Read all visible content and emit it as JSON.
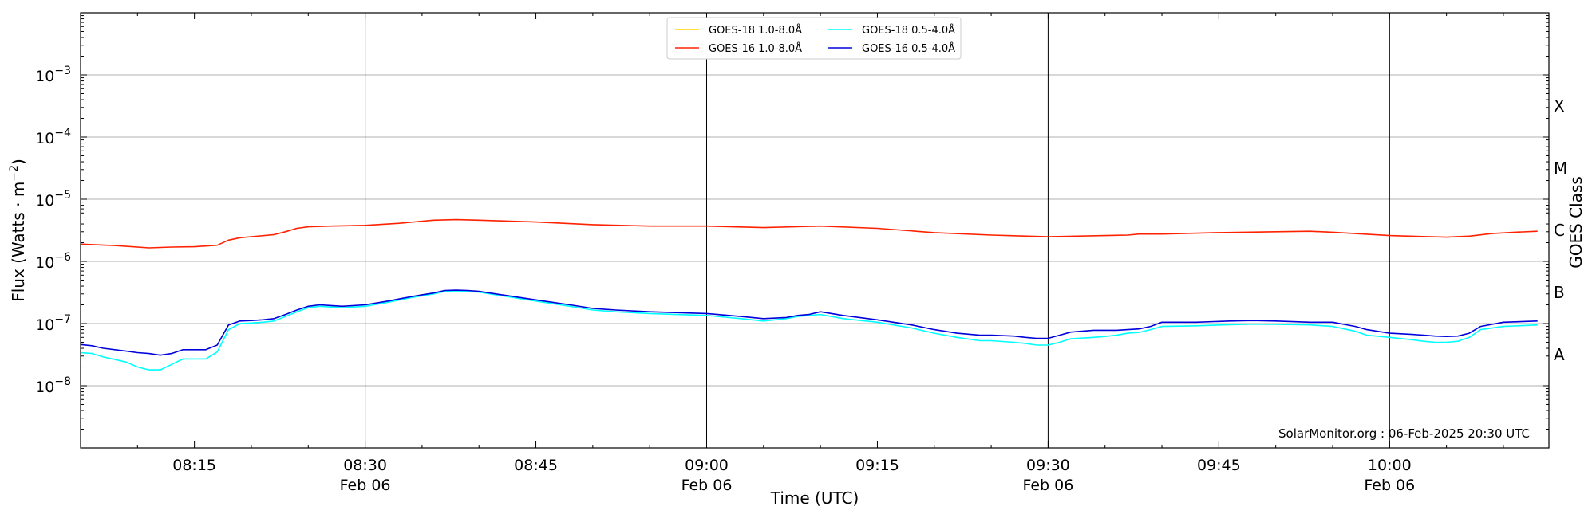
{
  "chart_data": {
    "type": "line",
    "xlabel": "Time (UTC)",
    "ylabel": "Flux (Watts · m$^{-2}$)",
    "ylabel_parts": {
      "main": "Flux (Watts · m",
      "sup": "−2",
      "close": ")"
    },
    "right_label": "GOES Class",
    "x_range": [
      "08:05",
      "10:14"
    ],
    "x_ticks": [
      {
        "time": "08:15",
        "date": ""
      },
      {
        "time": "08:30",
        "date": "Feb 06"
      },
      {
        "time": "08:45",
        "date": ""
      },
      {
        "time": "09:00",
        "date": "Feb 06"
      },
      {
        "time": "09:15",
        "date": ""
      },
      {
        "time": "09:30",
        "date": "Feb 06"
      },
      {
        "time": "09:45",
        "date": ""
      },
      {
        "time": "10:00",
        "date": "Feb 06"
      }
    ],
    "vertical_lines": [
      "08:30",
      "09:00",
      "09:30",
      "10:00"
    ],
    "y_scale": "log",
    "y_range": [
      1e-09,
      0.01
    ],
    "y_ticks": [
      {
        "exp": -8,
        "label": "10",
        "sup": "−8"
      },
      {
        "exp": -7,
        "label": "10",
        "sup": "−7"
      },
      {
        "exp": -6,
        "label": "10",
        "sup": "−6"
      },
      {
        "exp": -5,
        "label": "10",
        "sup": "−5"
      },
      {
        "exp": -4,
        "label": "10",
        "sup": "−4"
      },
      {
        "exp": -3,
        "label": "10",
        "sup": "−3"
      }
    ],
    "grid": "horizontal at decades",
    "goes_classes": [
      {
        "label": "A",
        "exp": -8
      },
      {
        "label": "B",
        "exp": -7
      },
      {
        "label": "C",
        "exp": -6
      },
      {
        "label": "M",
        "exp": -5
      },
      {
        "label": "X",
        "exp": -4
      }
    ],
    "legend_position": "top-center",
    "watermark": "SolarMonitor.org : 06-Feb-2025 20:30 UTC",
    "series": [
      {
        "name": "GOES-18 1.0-8.0Å",
        "color": "#ffd700",
        "x": [],
        "y": []
      },
      {
        "name": "GOES-16 1.0-8.0Å",
        "color": "#ff2200",
        "x": [
          "08:05",
          "08:08",
          "08:11",
          "08:13",
          "08:15",
          "08:17",
          "08:18",
          "08:19",
          "08:20",
          "08:22",
          "08:23",
          "08:24",
          "08:25",
          "08:27",
          "08:30",
          "08:33",
          "08:36",
          "08:38",
          "08:40",
          "08:45",
          "08:50",
          "08:55",
          "09:00",
          "09:05",
          "09:10",
          "09:15",
          "09:20",
          "09:25",
          "09:30",
          "09:35",
          "09:37",
          "09:38",
          "09:40",
          "09:45",
          "09:50",
          "09:53",
          "09:55",
          "10:00",
          "10:05",
          "10:07",
          "10:09",
          "10:11",
          "10:13"
        ],
        "y": [
          1.9e-06,
          1.8e-06,
          1.65e-06,
          1.7e-06,
          1.72e-06,
          1.82e-06,
          2.2e-06,
          2.4e-06,
          2.5e-06,
          2.7e-06,
          3e-06,
          3.4e-06,
          3.6e-06,
          3.7e-06,
          3.8e-06,
          4.1e-06,
          4.6e-06,
          4.7e-06,
          4.6e-06,
          4.3e-06,
          3.9e-06,
          3.7e-06,
          3.7e-06,
          3.5e-06,
          3.7e-06,
          3.4e-06,
          2.9e-06,
          2.65e-06,
          2.5e-06,
          2.6e-06,
          2.65e-06,
          2.75e-06,
          2.75e-06,
          2.9e-06,
          3e-06,
          3.05e-06,
          2.95e-06,
          2.6e-06,
          2.45e-06,
          2.55e-06,
          2.8e-06,
          2.95e-06,
          3.05e-06
        ]
      },
      {
        "name": "GOES-18 0.5-4.0Å",
        "color": "#00ffff",
        "x": [
          "08:05",
          "08:06",
          "08:07",
          "08:09",
          "08:10",
          "08:11",
          "08:12",
          "08:13",
          "08:14",
          "08:15",
          "08:16",
          "08:17",
          "08:18",
          "08:19",
          "08:20",
          "08:21",
          "08:22",
          "08:23",
          "08:24",
          "08:25",
          "08:26",
          "08:27",
          "08:28",
          "08:30",
          "08:32",
          "08:34",
          "08:35",
          "08:36",
          "08:37",
          "08:38",
          "08:39",
          "08:40",
          "08:42",
          "08:45",
          "08:48",
          "08:50",
          "08:52",
          "08:55",
          "09:00",
          "09:03",
          "09:05",
          "09:07",
          "09:08",
          "09:09",
          "09:10",
          "09:12",
          "09:15",
          "09:18",
          "09:20",
          "09:22",
          "09:24",
          "09:25",
          "09:27",
          "09:28",
          "09:29",
          "09:30",
          "09:31",
          "09:32",
          "09:34",
          "09:35",
          "09:36",
          "09:37",
          "09:38",
          "09:39",
          "09:40",
          "09:43",
          "09:46",
          "09:48",
          "09:50",
          "09:53",
          "09:55",
          "09:57",
          "09:58",
          "10:00",
          "10:02",
          "10:03",
          "10:04",
          "10:05",
          "10:06",
          "10:07",
          "10:08",
          "10:10",
          "10:13"
        ],
        "y": [
          3.4e-08,
          3.3e-08,
          2.9e-08,
          2.4e-08,
          2e-08,
          1.8e-08,
          1.8e-08,
          2.2e-08,
          2.7e-08,
          2.7e-08,
          2.7e-08,
          3.5e-08,
          8e-08,
          1e-07,
          1.02e-07,
          1.05e-07,
          1.1e-07,
          1.3e-07,
          1.55e-07,
          1.8e-07,
          1.9e-07,
          1.85e-07,
          1.8e-07,
          1.9e-07,
          2.2e-07,
          2.6e-07,
          2.8e-07,
          3e-07,
          3.3e-07,
          3.35e-07,
          3.3e-07,
          3.2e-07,
          2.8e-07,
          2.3e-07,
          1.9e-07,
          1.65e-07,
          1.55e-07,
          1.45e-07,
          1.35e-07,
          1.2e-07,
          1.1e-07,
          1.2e-07,
          1.3e-07,
          1.35e-07,
          1.4e-07,
          1.2e-07,
          1.05e-07,
          8.5e-08,
          7e-08,
          6e-08,
          5.3e-08,
          5.3e-08,
          5e-08,
          4.8e-08,
          4.5e-08,
          4.5e-08,
          5e-08,
          5.7e-08,
          6e-08,
          6.2e-08,
          6.5e-08,
          7e-08,
          7.2e-08,
          8e-08,
          9e-08,
          9.2e-08,
          9.6e-08,
          9.8e-08,
          9.7e-08,
          9.5e-08,
          9e-08,
          7.5e-08,
          6.5e-08,
          6e-08,
          5.5e-08,
          5.2e-08,
          5e-08,
          5e-08,
          5.2e-08,
          6e-08,
          8e-08,
          9e-08,
          9.5e-08
        ]
      },
      {
        "name": "GOES-16 0.5-4.0Å",
        "color": "#0000dd",
        "x": [
          "08:05",
          "08:06",
          "08:07",
          "08:09",
          "08:10",
          "08:11",
          "08:12",
          "08:13",
          "08:14",
          "08:15",
          "08:16",
          "08:17",
          "08:18",
          "08:19",
          "08:20",
          "08:21",
          "08:22",
          "08:23",
          "08:24",
          "08:25",
          "08:26",
          "08:27",
          "08:28",
          "08:30",
          "08:32",
          "08:34",
          "08:35",
          "08:36",
          "08:37",
          "08:38",
          "08:39",
          "08:40",
          "08:42",
          "08:45",
          "08:48",
          "08:50",
          "08:52",
          "08:55",
          "09:00",
          "09:03",
          "09:05",
          "09:07",
          "09:08",
          "09:09",
          "09:10",
          "09:12",
          "09:15",
          "09:18",
          "09:20",
          "09:22",
          "09:24",
          "09:25",
          "09:27",
          "09:28",
          "09:29",
          "09:30",
          "09:31",
          "09:32",
          "09:34",
          "09:35",
          "09:36",
          "09:37",
          "09:38",
          "09:39",
          "09:40",
          "09:43",
          "09:46",
          "09:48",
          "09:50",
          "09:53",
          "09:55",
          "09:57",
          "09:58",
          "10:00",
          "10:02",
          "10:03",
          "10:04",
          "10:05",
          "10:06",
          "10:07",
          "10:08",
          "10:10",
          "10:13"
        ],
        "y": [
          4.6e-08,
          4.4e-08,
          4e-08,
          3.6e-08,
          3.4e-08,
          3.3e-08,
          3.1e-08,
          3.3e-08,
          3.8e-08,
          3.8e-08,
          3.8e-08,
          4.5e-08,
          9.5e-08,
          1.1e-07,
          1.12e-07,
          1.15e-07,
          1.2e-07,
          1.4e-07,
          1.65e-07,
          1.9e-07,
          2e-07,
          1.95e-07,
          1.9e-07,
          2e-07,
          2.3e-07,
          2.7e-07,
          2.9e-07,
          3.1e-07,
          3.4e-07,
          3.45e-07,
          3.4e-07,
          3.3e-07,
          2.9e-07,
          2.4e-07,
          2e-07,
          1.75e-07,
          1.65e-07,
          1.55e-07,
          1.45e-07,
          1.3e-07,
          1.2e-07,
          1.25e-07,
          1.35e-07,
          1.4e-07,
          1.55e-07,
          1.35e-07,
          1.15e-07,
          9.5e-08,
          8e-08,
          7e-08,
          6.5e-08,
          6.5e-08,
          6.3e-08,
          6e-08,
          5.8e-08,
          5.8e-08,
          6.5e-08,
          7.3e-08,
          7.8e-08,
          7.8e-08,
          7.8e-08,
          8e-08,
          8.2e-08,
          9e-08,
          1.05e-07,
          1.05e-07,
          1.1e-07,
          1.12e-07,
          1.1e-07,
          1.05e-07,
          1.05e-07,
          9e-08,
          8e-08,
          7e-08,
          6.7e-08,
          6.5e-08,
          6.3e-08,
          6.2e-08,
          6.3e-08,
          7e-08,
          9e-08,
          1.05e-07,
          1.1e-07
        ]
      }
    ]
  }
}
